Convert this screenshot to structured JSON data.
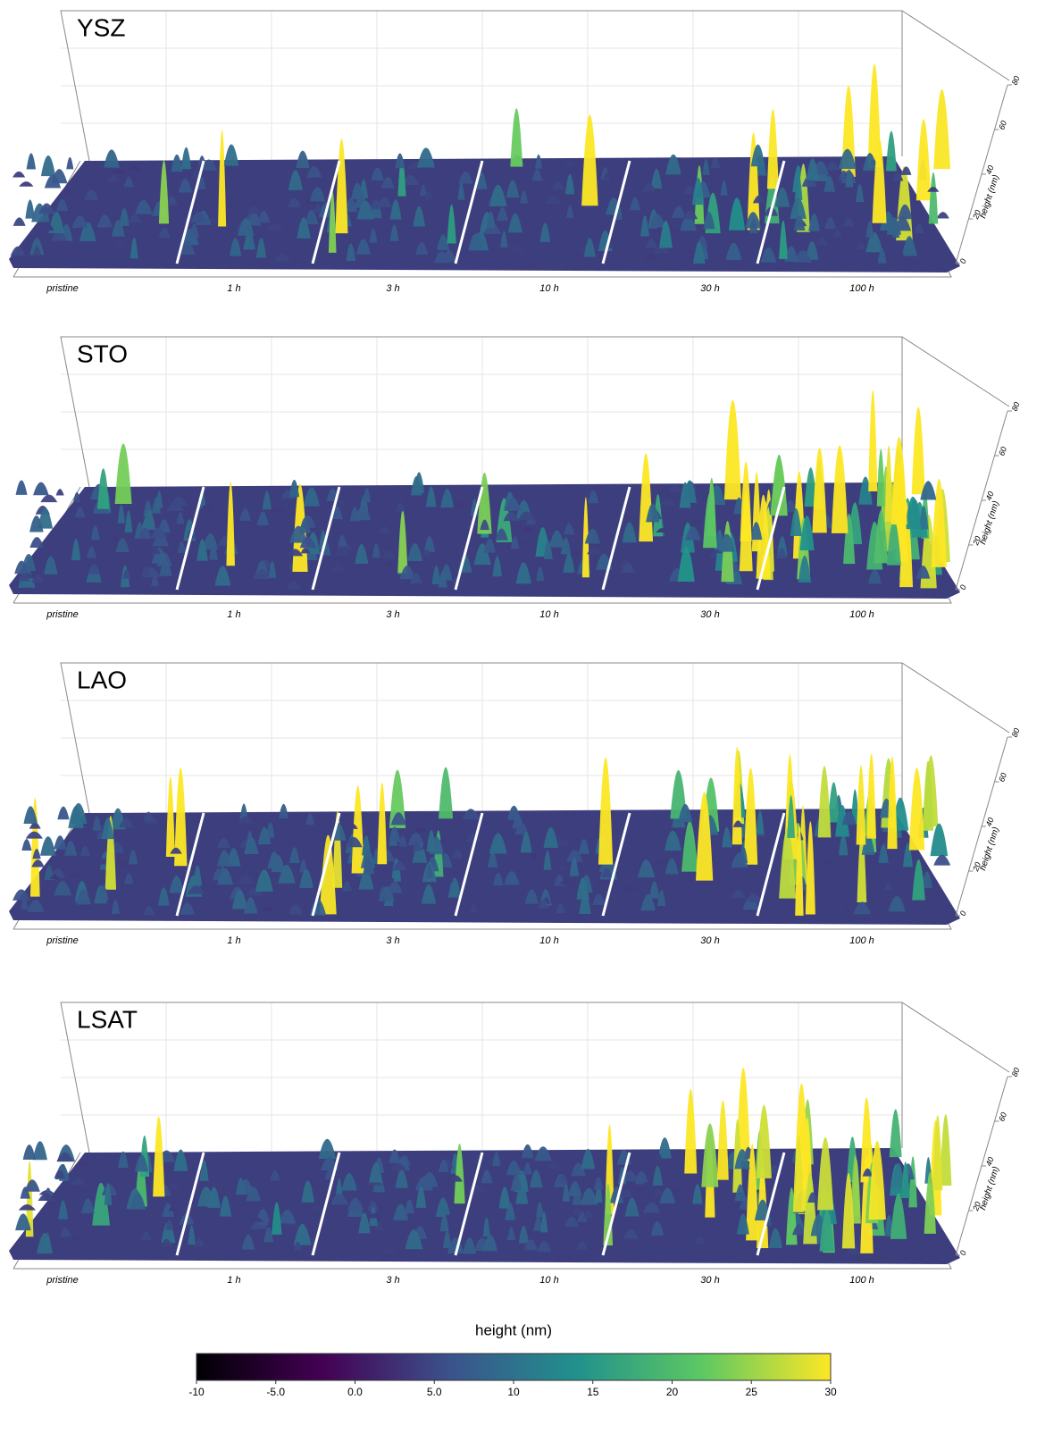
{
  "panels": [
    {
      "title": "YSZ",
      "categories": [
        "pristine",
        "1 h",
        "3 h",
        "10 h",
        "30 h",
        "100 h"
      ],
      "z_label": "height (nm)",
      "zlim": [
        0,
        80
      ],
      "zticks": [
        0,
        20,
        40,
        60,
        80
      ]
    },
    {
      "title": "STO",
      "categories": [
        "pristine",
        "1 h",
        "3 h",
        "10 h",
        "30 h",
        "100 h"
      ],
      "z_label": "height (nm)",
      "zlim": [
        0,
        80
      ],
      "zticks": [
        0,
        20,
        40,
        60,
        80
      ]
    },
    {
      "title": "LAO",
      "categories": [
        "pristine",
        "1 h",
        "3 h",
        "10 h",
        "30 h",
        "100 h"
      ],
      "z_label": "height (nm)",
      "zlim": [
        0,
        80
      ],
      "zticks": [
        0,
        20,
        40,
        60,
        80
      ]
    },
    {
      "title": "LSAT",
      "categories": [
        "pristine",
        "1 h",
        "3 h",
        "10 h",
        "30 h",
        "100 h"
      ],
      "z_label": "height (nm)",
      "zlim": [
        0,
        80
      ],
      "zticks": [
        0,
        20,
        40,
        60,
        80
      ]
    }
  ],
  "colorbar": {
    "title": "height (nm)",
    "lim": [
      -10,
      30
    ],
    "ticks": [
      -10,
      {
        "value": -5,
        "label": "-5.0"
      },
      {
        "value": 0,
        "label": "0.0"
      },
      {
        "value": 5,
        "label": "5.0"
      },
      10,
      15,
      20,
      25,
      30
    ],
    "colors": [
      "#000004",
      "#440154",
      "#3b528b",
      "#21918c",
      "#5ec962",
      "#fde725"
    ]
  }
}
